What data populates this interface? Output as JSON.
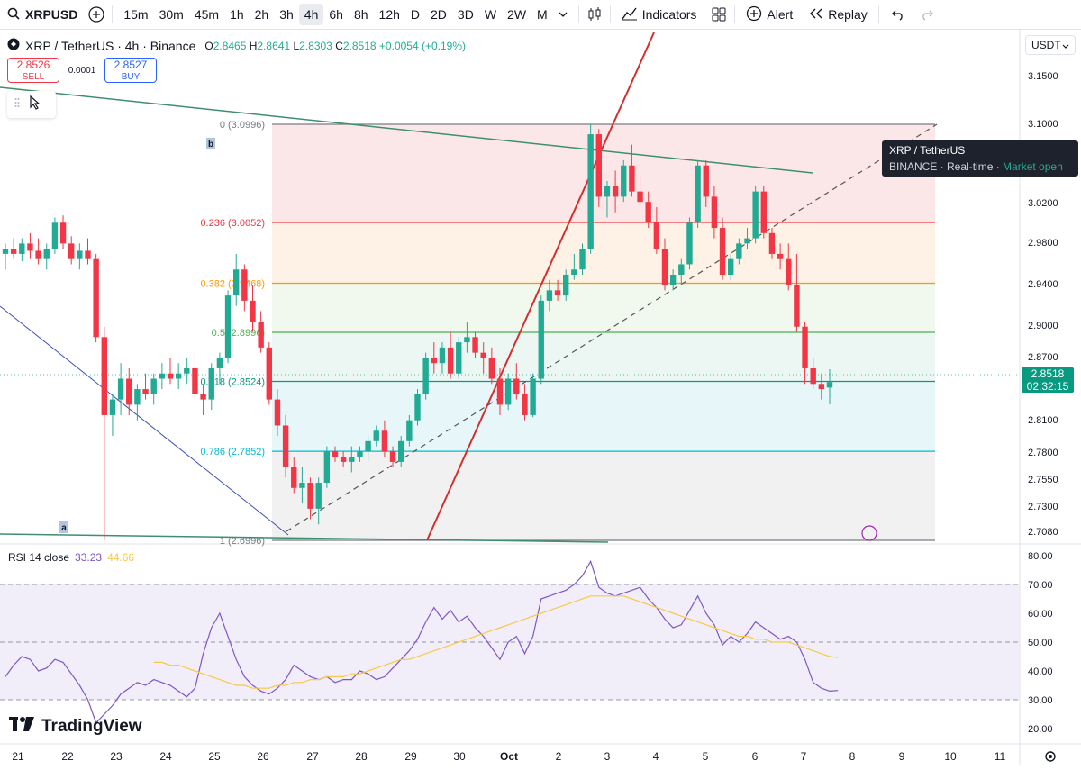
{
  "toolbar": {
    "symbol": "XRPUSD",
    "timeframes": [
      "15m",
      "30m",
      "45m",
      "1h",
      "2h",
      "3h",
      "4h",
      "6h",
      "8h",
      "12h",
      "D",
      "2D",
      "3D",
      "W",
      "2W",
      "M"
    ],
    "active_timeframe": "4h",
    "indicators_label": "Indicators",
    "alert_label": "Alert",
    "replay_label": "Replay"
  },
  "legend": {
    "title": "XRP / TetherUS · 4h · Binance",
    "o_label": "O",
    "o_value": "2.8465",
    "h_label": "H",
    "h_value": "2.8641",
    "l_label": "L",
    "l_value": "2.8303",
    "c_label": "C",
    "c_value": "2.8518",
    "change": "+0.0054 (+0.19%)"
  },
  "trade": {
    "sell_price": "2.8526",
    "sell_label": "SELL",
    "spread": "0.0001",
    "buy_price": "2.8527",
    "buy_label": "BUY"
  },
  "tooltip": {
    "line1": "XRP / TetherUS",
    "exchange": "BINANCE",
    "realtime": "Real-time",
    "status": "Market open"
  },
  "currency": "USDT",
  "price_tag": {
    "price": "2.8518",
    "countdown": "02:32:15"
  },
  "rsi_legend": {
    "name": "RSI 14 close",
    "rsi": "33.23",
    "ma": "44.66"
  },
  "brand": "TradingView",
  "colors": {
    "up": "#22ab94",
    "down": "#f23645",
    "rsi": "#7e57c2",
    "rsi_ma": "#f7c948",
    "accent": "#2962ff"
  },
  "chart_data": {
    "type": "candlestick",
    "y_ticks": [
      "3.1500",
      "3.1000",
      "3.0200",
      "2.9800",
      "2.9400",
      "2.9000",
      "2.8700",
      "2.8100",
      "2.7800",
      "2.7550",
      "2.7300",
      "2.7080"
    ],
    "x_ticks": [
      "21",
      "22",
      "23",
      "24",
      "25",
      "26",
      "27",
      "28",
      "29",
      "30",
      "Oct",
      "2",
      "3",
      "4",
      "5",
      "6",
      "7",
      "8",
      "9",
      "10",
      "11"
    ],
    "fib_levels": [
      {
        "label": "0 (3.0996)",
        "value": 3.0996,
        "color": "#787b86"
      },
      {
        "label": "0.236 (3.0052)",
        "value": 3.0052,
        "color": "#f23645"
      },
      {
        "label": "0.382 (2.9468)",
        "value": 2.9468,
        "color": "#ff9800"
      },
      {
        "label": "0.5 (2.8996)",
        "value": 2.8996,
        "color": "#4caf50"
      },
      {
        "label": "0.618 (2.8524)",
        "value": 2.8524,
        "color": "#089981"
      },
      {
        "label": "0.786 (2.7852)",
        "value": 2.7852,
        "color": "#00bcd4"
      },
      {
        "label": "1 (2.6996)",
        "value": 2.6996,
        "color": "#787b86"
      }
    ],
    "wave_labels": [
      "a",
      "b"
    ],
    "candles": [
      [
        2.975,
        2.985,
        2.96,
        2.98
      ],
      [
        2.98,
        2.99,
        2.97,
        2.975
      ],
      [
        2.975,
        2.99,
        2.968,
        2.985
      ],
      [
        2.985,
        2.995,
        2.97,
        2.978
      ],
      [
        2.978,
        2.99,
        2.965,
        2.97
      ],
      [
        2.97,
        2.985,
        2.96,
        2.98
      ],
      [
        2.98,
        3.01,
        2.975,
        3.005
      ],
      [
        3.005,
        3.012,
        2.98,
        2.985
      ],
      [
        2.985,
        2.992,
        2.965,
        2.97
      ],
      [
        2.97,
        2.985,
        2.96,
        2.978
      ],
      [
        2.978,
        2.99,
        2.965,
        2.97
      ],
      [
        2.97,
        2.975,
        2.89,
        2.895
      ],
      [
        2.895,
        2.905,
        2.7,
        2.82
      ],
      [
        2.82,
        2.84,
        2.8,
        2.835
      ],
      [
        2.835,
        2.87,
        2.82,
        2.855
      ],
      [
        2.855,
        2.865,
        2.82,
        2.83
      ],
      [
        2.83,
        2.85,
        2.815,
        2.845
      ],
      [
        2.845,
        2.86,
        2.835,
        2.84
      ],
      [
        2.84,
        2.86,
        2.83,
        2.855
      ],
      [
        2.855,
        2.87,
        2.845,
        2.86
      ],
      [
        2.86,
        2.875,
        2.85,
        2.855
      ],
      [
        2.855,
        2.87,
        2.845,
        2.86
      ],
      [
        2.86,
        2.875,
        2.85,
        2.865
      ],
      [
        2.865,
        2.88,
        2.835,
        2.84
      ],
      [
        2.84,
        2.85,
        2.82,
        2.835
      ],
      [
        2.835,
        2.87,
        2.825,
        2.865
      ],
      [
        2.865,
        2.88,
        2.85,
        2.875
      ],
      [
        2.875,
        2.94,
        2.87,
        2.935
      ],
      [
        2.935,
        2.975,
        2.925,
        2.96
      ],
      [
        2.96,
        2.965,
        2.92,
        2.93
      ],
      [
        2.93,
        2.945,
        2.9,
        2.91
      ],
      [
        2.91,
        2.92,
        2.88,
        2.885
      ],
      [
        2.885,
        2.89,
        2.83,
        2.835
      ],
      [
        2.835,
        2.845,
        2.8,
        2.81
      ],
      [
        2.81,
        2.82,
        2.76,
        2.77
      ],
      [
        2.77,
        2.78,
        2.745,
        2.75
      ],
      [
        2.75,
        2.77,
        2.735,
        2.755
      ],
      [
        2.755,
        2.76,
        2.72,
        2.73
      ],
      [
        2.73,
        2.76,
        2.715,
        2.755
      ],
      [
        2.755,
        2.79,
        2.75,
        2.785
      ],
      [
        2.785,
        2.79,
        2.775,
        2.78
      ],
      [
        2.78,
        2.785,
        2.77,
        2.775
      ],
      [
        2.775,
        2.79,
        2.765,
        2.78
      ],
      [
        2.78,
        2.79,
        2.775,
        2.785
      ],
      [
        2.785,
        2.8,
        2.775,
        2.795
      ],
      [
        2.795,
        2.81,
        2.79,
        2.805
      ],
      [
        2.805,
        2.815,
        2.78,
        2.785
      ],
      [
        2.785,
        2.79,
        2.77,
        2.775
      ],
      [
        2.775,
        2.8,
        2.77,
        2.795
      ],
      [
        2.795,
        2.82,
        2.79,
        2.815
      ],
      [
        2.815,
        2.845,
        2.81,
        2.84
      ],
      [
        2.84,
        2.88,
        2.835,
        2.875
      ],
      [
        2.875,
        2.89,
        2.86,
        2.87
      ],
      [
        2.87,
        2.89,
        2.86,
        2.885
      ],
      [
        2.885,
        2.9,
        2.855,
        2.86
      ],
      [
        2.86,
        2.895,
        2.855,
        2.89
      ],
      [
        2.89,
        2.91,
        2.88,
        2.895
      ],
      [
        2.895,
        2.9,
        2.875,
        2.88
      ],
      [
        2.88,
        2.89,
        2.86,
        2.875
      ],
      [
        2.875,
        2.885,
        2.85,
        2.855
      ],
      [
        2.855,
        2.865,
        2.82,
        2.83
      ],
      [
        2.83,
        2.86,
        2.825,
        2.855
      ],
      [
        2.855,
        2.87,
        2.835,
        2.84
      ],
      [
        2.84,
        2.85,
        2.815,
        2.82
      ],
      [
        2.82,
        2.86,
        2.818,
        2.855
      ],
      [
        2.855,
        2.935,
        2.85,
        2.93
      ],
      [
        2.93,
        2.95,
        2.92,
        2.94
      ],
      [
        2.94,
        2.95,
        2.93,
        2.935
      ],
      [
        2.935,
        2.96,
        2.93,
        2.955
      ],
      [
        2.955,
        2.975,
        2.95,
        2.96
      ],
      [
        2.96,
        2.985,
        2.955,
        2.98
      ],
      [
        2.98,
        3.1,
        2.975,
        3.09
      ],
      [
        3.09,
        3.095,
        3.02,
        3.03
      ],
      [
        3.03,
        3.045,
        3.01,
        3.04
      ],
      [
        3.04,
        3.055,
        3.015,
        3.03
      ],
      [
        3.03,
        3.065,
        3.025,
        3.06
      ],
      [
        3.06,
        3.08,
        3.03,
        3.035
      ],
      [
        3.035,
        3.05,
        3.02,
        3.025
      ],
      [
        3.025,
        3.035,
        3.0,
        3.005
      ],
      [
        3.005,
        3.02,
        2.975,
        2.98
      ],
      [
        2.98,
        2.99,
        2.94,
        2.945
      ],
      [
        2.945,
        2.96,
        2.94,
        2.955
      ],
      [
        2.955,
        2.97,
        2.945,
        2.965
      ],
      [
        2.965,
        3.01,
        2.96,
        3.005
      ],
      [
        3.005,
        3.065,
        3.0,
        3.06
      ],
      [
        3.06,
        3.065,
        3.02,
        3.03
      ],
      [
        3.03,
        3.04,
        2.99,
        3.0
      ],
      [
        3.0,
        3.01,
        2.95,
        2.955
      ],
      [
        2.955,
        2.975,
        2.95,
        2.97
      ],
      [
        2.97,
        2.99,
        2.965,
        2.985
      ],
      [
        2.985,
        3.0,
        2.98,
        2.99
      ],
      [
        2.99,
        3.04,
        2.985,
        3.035
      ],
      [
        3.035,
        3.04,
        2.99,
        2.995
      ],
      [
        2.995,
        3.0,
        2.97,
        2.975
      ],
      [
        2.975,
        2.985,
        2.96,
        2.97
      ],
      [
        2.97,
        2.985,
        2.94,
        2.945
      ],
      [
        2.945,
        2.975,
        2.9,
        2.905
      ],
      [
        2.905,
        2.91,
        2.85,
        2.865
      ],
      [
        2.865,
        2.875,
        2.845,
        2.85
      ],
      [
        2.85,
        2.86,
        2.835,
        2.845
      ],
      [
        2.8465,
        2.8641,
        2.8303,
        2.8518
      ]
    ],
    "rsi_ticks": [
      "80.00",
      "70.00",
      "60.00",
      "50.00",
      "40.00",
      "30.00",
      "20.00"
    ],
    "rsi_levels": {
      "upper": 70,
      "middle": 50,
      "lower": 30
    },
    "rsi": [
      38,
      42,
      45,
      44,
      40,
      41,
      44,
      43,
      39,
      35,
      30,
      22,
      25,
      28,
      32,
      34,
      36,
      35,
      37,
      36,
      35,
      33,
      31,
      34,
      46,
      55,
      60,
      52,
      44,
      38,
      35,
      33,
      32,
      34,
      37,
      42,
      40,
      38,
      37,
      38,
      36,
      37,
      37,
      40,
      39,
      37,
      38,
      41,
      44,
      47,
      51,
      57,
      62,
      58,
      61,
      57,
      59,
      55,
      52,
      48,
      44,
      50,
      52,
      46,
      52,
      65,
      66,
      67,
      68,
      70,
      73,
      78,
      69,
      67,
      66,
      67,
      68,
      69,
      65,
      62,
      58,
      55,
      56,
      61,
      66,
      60,
      56,
      49,
      52,
      50,
      53,
      57,
      55,
      53,
      51,
      52,
      50,
      44,
      36,
      34,
      33,
      33.23
    ],
    "rsi_ma": [
      43,
      43,
      42,
      42,
      41,
      40,
      39,
      38,
      37,
      36,
      35,
      35,
      34,
      34,
      34,
      35,
      35,
      36,
      36,
      37,
      37,
      38,
      38,
      38,
      39,
      39,
      40,
      41,
      42,
      43,
      44,
      44,
      45,
      46,
      47,
      48,
      49,
      50,
      51,
      52,
      53,
      54,
      55,
      56,
      57,
      58,
      59,
      60,
      61,
      62,
      63,
      64,
      65,
      66,
      66,
      66,
      66,
      66,
      65,
      64,
      63,
      62,
      61,
      60,
      59,
      58,
      57,
      56,
      55,
      54,
      53,
      52,
      52,
      51,
      51,
      50,
      50,
      50,
      49,
      48,
      47,
      46,
      45,
      44.66
    ]
  }
}
